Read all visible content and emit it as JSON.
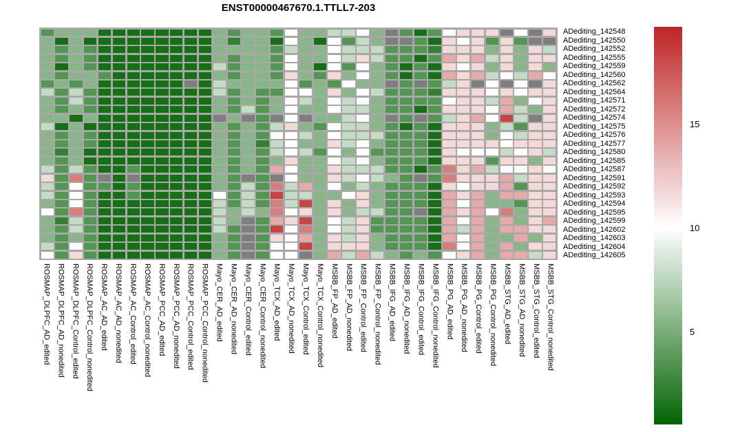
{
  "title": "ENST00000467670.1.TTLL7-203",
  "chart_data": {
    "type": "heatmap",
    "title": "ENST00000467670.1.TTLL7-203",
    "rows": [
      "ADediting_142548",
      "ADediting_142550",
      "ADediting_142552",
      "ADediting_142555",
      "ADediting_142559",
      "ADediting_142560",
      "ADediting_142562",
      "ADediting_142564",
      "ADediting_142571",
      "ADediting_142572",
      "ADediting_142574",
      "ADediting_142575",
      "ADediting_142576",
      "ADediting_142577",
      "ADediting_142580",
      "ADediting_142585",
      "ADediting_142587",
      "ADediting_142591",
      "ADediting_142592",
      "ADediting_142593",
      "ADediting_142594",
      "ADediting_142595",
      "ADediting_142599",
      "ADediting_142602",
      "ADediting_142603",
      "ADediting_142604",
      "ADediting_142605"
    ],
    "columns": [
      "ROSMAP_DLPFC_AD_edited",
      "ROSMAP_DLPFC_AD_nonedited",
      "ROSMAP_DLPFC_Control_edited",
      "ROSMAP_DLPFC_Control_nonedited",
      "ROSMAP_AC_AD_edited",
      "ROSMAP_AC_AD_nonedited",
      "ROSMAP_AC_Control_edited",
      "ROSMAP_AC_Control_nonedited",
      "ROSMAP_PCC_AD_edited",
      "ROSMAP_PCC_AD_nonedited",
      "ROSMAP_PCC_Control_edited",
      "ROSMAP_PCC_Control_nonedited",
      "Mayo_CER_AD_edited",
      "Mayo_CER_AD_nonedited",
      "Mayo_CER_Control_edited",
      "Mayo_CER_Control_nonedited",
      "Mayo_TCX_AD_edited",
      "Mayo_TCX_AD_nonedited",
      "Mayo_TCX_Control_edited",
      "Mayo_TCX_Control_nonedited",
      "MSBB_FP_AD_edited",
      "MSBB_FP_AD_nonedited",
      "MSBB_FP_Control_edited",
      "MSBB_FP_Control_nonedited",
      "MSBB_IFG_AD_edited",
      "MSBB_IFG_AD_nonedited",
      "MSBB_IFG_Control_edited",
      "MSBB_IFG_Control_nonedited",
      "MSBB_PG_AD_edited",
      "MSBB_PG_AD_nonedited",
      "MSBB_PG_Control_edited",
      "MSBB_PG_Control_nonedited",
      "MSBB_STG_AD_edited",
      "MSBB_STG_AD_nonedited",
      "MSBB_STG_Control_edited",
      "MSBB_STG_Control_nonedited"
    ],
    "values": [
      [
        3.5,
        5.5,
        5.5,
        5.5,
        1.2,
        1.2,
        1.2,
        1.2,
        1.2,
        1.2,
        1.2,
        1.2,
        5.5,
        3.5,
        5.5,
        5.5,
        3.5,
        9.9,
        5.5,
        5.5,
        7.8,
        7.8,
        9.9,
        5.5,
        null,
        3.5,
        1.2,
        3.5,
        9.9,
        11.7,
        11.7,
        11.7,
        null,
        9.9,
        null,
        11.7
      ],
      [
        5.5,
        1.2,
        5.5,
        1.2,
        1.2,
        1.2,
        1.2,
        1.2,
        1.2,
        1.2,
        1.2,
        1.2,
        5.5,
        2.3,
        5.5,
        5.5,
        1.2,
        9.9,
        5.5,
        1.2,
        9.9,
        3.5,
        7.8,
        5.5,
        null,
        null,
        3.5,
        1.2,
        11.7,
        9.9,
        11.7,
        3.5,
        11.7,
        3.5,
        null,
        null
      ],
      [
        5.5,
        3.5,
        5.5,
        3.5,
        1.2,
        1.2,
        1.2,
        1.2,
        1.2,
        1.2,
        1.2,
        1.2,
        5.5,
        5.5,
        5.5,
        5.5,
        3.5,
        7.8,
        5.5,
        5.5,
        9.9,
        7.8,
        7.8,
        7.8,
        3.5,
        3.5,
        3.5,
        2.3,
        11.7,
        11.7,
        11.7,
        5.5,
        11.7,
        5.5,
        11.7,
        7.8
      ],
      [
        5.5,
        3.5,
        5.5,
        3.5,
        1.2,
        1.2,
        1.2,
        1.2,
        1.2,
        1.2,
        1.2,
        1.2,
        5.5,
        3.5,
        5.5,
        5.5,
        3.5,
        9.9,
        5.5,
        5.5,
        9.9,
        7.8,
        11.7,
        7.8,
        3.5,
        3.5,
        1.2,
        3.5,
        13.8,
        11.7,
        13.8,
        7.8,
        11.7,
        5.5,
        11.7,
        11.7
      ],
      [
        5.5,
        1.2,
        5.5,
        3.5,
        1.2,
        1.2,
        1.2,
        1.2,
        1.2,
        1.2,
        1.2,
        1.2,
        7.8,
        3.5,
        5.5,
        5.5,
        3.5,
        9.9,
        5.5,
        1.2,
        9.9,
        3.5,
        9.9,
        5.5,
        3.5,
        1.2,
        3.5,
        1.2,
        11.7,
        9.9,
        11.7,
        5.5,
        11.7,
        5.5,
        11.7,
        5.5
      ],
      [
        5.5,
        3.5,
        5.5,
        5.5,
        3.5,
        1.2,
        1.2,
        1.2,
        1.2,
        1.2,
        1.2,
        1.2,
        5.5,
        3.5,
        5.5,
        5.5,
        3.5,
        11.7,
        5.5,
        3.5,
        11.7,
        5.5,
        9.9,
        5.5,
        3.5,
        1.2,
        3.5,
        1.2,
        13.8,
        11.7,
        13.8,
        7.8,
        9.9,
        7.8,
        13.8,
        9.9
      ],
      [
        3.5,
        5.5,
        3.5,
        5.5,
        1.2,
        1.2,
        1.2,
        1.2,
        1.2,
        1.2,
        null,
        1.2,
        7.8,
        5.5,
        5.5,
        5.5,
        5.5,
        9.9,
        3.5,
        5.5,
        3.5,
        9.9,
        5.5,
        5.5,
        null,
        3.5,
        null,
        3.5,
        7.8,
        11.7,
        null,
        9.9,
        null,
        9.9,
        null,
        11.7
      ],
      [
        7.8,
        3.5,
        7.8,
        3.5,
        1.2,
        1.2,
        1.2,
        1.2,
        1.2,
        1.2,
        1.2,
        1.2,
        7.8,
        3.5,
        5.5,
        3.5,
        3.5,
        9.9,
        9.9,
        5.5,
        11.7,
        5.5,
        9.9,
        7.8,
        3.5,
        3.5,
        3.5,
        2.3,
        11.7,
        11.7,
        11.7,
        9.9,
        11.7,
        9.9,
        11.7,
        11.7
      ],
      [
        5.5,
        3.5,
        7.8,
        3.5,
        1.2,
        1.2,
        1.2,
        1.2,
        1.2,
        1.2,
        1.2,
        1.2,
        5.5,
        3.5,
        5.5,
        3.5,
        5.5,
        9.9,
        7.8,
        5.5,
        9.9,
        7.8,
        9.9,
        5.5,
        3.5,
        3.5,
        3.5,
        3.5,
        9.9,
        11.7,
        11.7,
        7.8,
        13.8,
        5.5,
        9.9,
        11.7
      ],
      [
        5.5,
        3.5,
        5.5,
        3.5,
        1.2,
        1.2,
        1.2,
        1.2,
        1.2,
        1.2,
        1.2,
        1.2,
        5.5,
        3.5,
        7.8,
        3.5,
        5.5,
        9.9,
        5.5,
        5.5,
        9.9,
        7.8,
        7.8,
        5.5,
        3.5,
        3.5,
        1.2,
        3.5,
        11.7,
        11.7,
        11.7,
        9.9,
        13.8,
        7.8,
        5.5,
        11.7
      ],
      [
        5.5,
        5.5,
        1.2,
        5.5,
        1.2,
        1.2,
        1.2,
        1.2,
        1.2,
        1.2,
        1.2,
        1.2,
        null,
        5.5,
        null,
        3.5,
        null,
        9.9,
        null,
        5.5,
        5.5,
        7.8,
        9.9,
        5.5,
        null,
        3.5,
        null,
        3.5,
        7.8,
        11.7,
        13.8,
        9.9,
        18.3,
        7.8,
        null,
        11.7
      ],
      [
        7.8,
        1.2,
        5.5,
        1.2,
        1.2,
        1.2,
        1.2,
        1.2,
        1.2,
        1.2,
        1.2,
        1.2,
        5.5,
        3.5,
        5.5,
        3.5,
        7.8,
        11.7,
        5.5,
        3.5,
        9.9,
        7.8,
        7.8,
        5.5,
        3.5,
        1.2,
        3.5,
        1.2,
        11.7,
        11.7,
        11.7,
        5.5,
        7.8,
        3.5,
        11.7,
        11.7
      ],
      [
        5.5,
        3.5,
        5.5,
        3.5,
        1.2,
        1.2,
        1.2,
        1.2,
        1.2,
        1.2,
        1.2,
        1.2,
        5.5,
        3.5,
        5.5,
        3.5,
        9.9,
        9.9,
        7.8,
        5.5,
        9.9,
        7.8,
        7.8,
        7.8,
        3.5,
        3.5,
        3.5,
        1.2,
        11.7,
        11.7,
        11.7,
        5.5,
        9.9,
        7.8,
        11.7,
        11.7
      ],
      [
        5.5,
        3.5,
        5.5,
        3.5,
        1.2,
        1.2,
        1.2,
        1.2,
        1.2,
        1.2,
        1.2,
        1.2,
        5.5,
        3.5,
        5.5,
        2.3,
        7.8,
        9.9,
        5.5,
        5.5,
        11.7,
        7.8,
        9.9,
        5.5,
        3.5,
        3.5,
        3.5,
        1.2,
        11.7,
        11.7,
        11.7,
        11.7,
        9.9,
        11.7,
        11.7,
        11.7
      ],
      [
        5.5,
        2.3,
        5.5,
        1.2,
        1.2,
        1.2,
        1.2,
        1.2,
        1.2,
        1.2,
        1.2,
        1.2,
        5.5,
        3.5,
        5.5,
        3.5,
        7.8,
        9.9,
        7.8,
        3.5,
        9.9,
        5.5,
        9.9,
        3.5,
        3.5,
        3.5,
        3.5,
        1.2,
        11.7,
        9.9,
        9.9,
        9.9,
        7.8,
        9.9,
        11.7,
        7.8
      ],
      [
        5.5,
        3.5,
        5.5,
        1.2,
        1.2,
        1.2,
        1.2,
        1.2,
        1.2,
        1.2,
        1.2,
        1.2,
        5.5,
        3.5,
        5.5,
        3.5,
        5.5,
        11.7,
        5.5,
        5.5,
        9.9,
        7.8,
        9.9,
        5.5,
        3.5,
        3.5,
        3.5,
        1.2,
        11.7,
        11.7,
        11.7,
        3.5,
        11.7,
        11.7,
        5.5,
        11.7
      ],
      [
        7.8,
        3.5,
        7.8,
        3.5,
        1.2,
        1.2,
        3.5,
        1.2,
        1.2,
        1.2,
        1.2,
        1.2,
        5.5,
        3.5,
        5.5,
        3.5,
        13.8,
        9.9,
        5.5,
        5.5,
        11.7,
        7.8,
        7.8,
        7.8,
        3.5,
        3.5,
        1.2,
        3.5,
        15.8,
        11.7,
        13.8,
        7.8,
        9.9,
        9.9,
        11.7,
        9.9
      ],
      [
        11.7,
        3.5,
        15.8,
        3.5,
        null,
        1.2,
        null,
        1.2,
        1.2,
        1.2,
        1.2,
        1.2,
        5.5,
        3.5,
        null,
        3.5,
        null,
        9.9,
        5.5,
        5.5,
        11.7,
        7.8,
        9.9,
        7.8,
        5.5,
        3.5,
        null,
        3.5,
        15.8,
        11.7,
        11.7,
        11.7,
        13.8,
        7.8,
        11.7,
        11.7
      ],
      [
        7.8,
        3.5,
        9.9,
        3.5,
        3.5,
        1.2,
        3.5,
        1.2,
        1.2,
        1.2,
        1.2,
        1.2,
        5.5,
        3.5,
        7.8,
        3.5,
        15.8,
        7.8,
        13.8,
        5.5,
        9.9,
        5.5,
        7.8,
        5.5,
        3.5,
        3.5,
        3.5,
        1.2,
        11.7,
        9.9,
        11.7,
        11.7,
        13.8,
        3.5,
        11.7,
        11.7
      ],
      [
        7.8,
        3.5,
        9.9,
        3.5,
        1.2,
        1.2,
        3.5,
        1.2,
        1.2,
        1.2,
        1.2,
        1.2,
        9.9,
        3.5,
        7.8,
        3.5,
        18.3,
        7.8,
        7.8,
        5.5,
        5.5,
        9.9,
        11.7,
        5.5,
        3.5,
        3.5,
        3.5,
        1.2,
        13.8,
        11.7,
        13.8,
        5.5,
        13.8,
        13.8,
        11.7,
        11.7
      ],
      [
        5.5,
        3.5,
        9.9,
        3.5,
        1.2,
        1.2,
        1.2,
        1.2,
        1.2,
        1.2,
        1.2,
        1.2,
        7.8,
        3.5,
        7.8,
        3.5,
        15.8,
        7.8,
        18.3,
        5.5,
        11.7,
        5.5,
        11.7,
        5.5,
        3.5,
        3.5,
        3.5,
        1.2,
        13.8,
        9.9,
        13.8,
        5.5,
        5.5,
        3.5,
        11.7,
        11.7
      ],
      [
        9.9,
        3.5,
        15.8,
        3.5,
        1.2,
        1.2,
        1.2,
        1.2,
        1.2,
        1.2,
        1.2,
        1.2,
        7.8,
        5.5,
        7.8,
        5.5,
        15.8,
        9.9,
        11.7,
        5.5,
        11.7,
        5.5,
        7.8,
        7.8,
        3.5,
        3.5,
        null,
        1.2,
        13.8,
        11.7,
        13.8,
        9.9,
        15.8,
        5.5,
        11.7,
        11.7
      ],
      [
        5.5,
        2.3,
        7.8,
        3.5,
        1.2,
        1.2,
        1.2,
        1.2,
        1.2,
        1.2,
        1.2,
        1.2,
        7.8,
        5.5,
        null,
        3.5,
        13.8,
        11.7,
        18.3,
        5.5,
        9.9,
        7.8,
        11.7,
        3.5,
        3.5,
        3.5,
        3.5,
        1.2,
        13.8,
        9.9,
        13.8,
        5.5,
        13.8,
        5.5,
        11.7,
        13.8
      ],
      [
        5.5,
        3.5,
        7.8,
        3.5,
        1.2,
        1.2,
        1.2,
        1.2,
        1.2,
        1.2,
        1.2,
        1.2,
        7.8,
        3.5,
        null,
        3.5,
        18.3,
        9.9,
        15.8,
        5.5,
        9.9,
        7.8,
        11.7,
        3.5,
        3.5,
        3.5,
        3.5,
        1.2,
        13.8,
        7.8,
        13.8,
        5.5,
        13.8,
        13.8,
        11.7,
        11.7
      ],
      [
        5.5,
        3.5,
        5.5,
        3.5,
        1.2,
        1.2,
        1.2,
        1.2,
        1.2,
        1.2,
        1.2,
        1.2,
        5.5,
        3.5,
        null,
        3.5,
        11.7,
        9.9,
        13.8,
        5.5,
        11.7,
        7.8,
        11.7,
        5.5,
        3.5,
        3.5,
        3.5,
        1.2,
        13.8,
        9.9,
        13.8,
        5.5,
        5.5,
        13.8,
        5.5,
        11.7
      ],
      [
        7.8,
        3.5,
        9.9,
        3.5,
        1.2,
        1.2,
        1.2,
        1.2,
        1.2,
        1.2,
        1.2,
        1.2,
        5.5,
        3.5,
        null,
        3.5,
        9.9,
        9.9,
        18.3,
        5.5,
        11.7,
        11.7,
        11.7,
        5.5,
        3.5,
        3.5,
        3.5,
        1.2,
        15.8,
        9.9,
        13.8,
        5.5,
        13.8,
        5.5,
        11.7,
        11.7
      ],
      [
        9.9,
        3.5,
        11.7,
        3.5,
        1.2,
        1.2,
        1.2,
        1.2,
        1.2,
        1.2,
        1.2,
        1.2,
        5.5,
        3.5,
        null,
        3.5,
        9.9,
        9.9,
        null,
        5.5,
        13.8,
        7.8,
        13.8,
        7.8,
        5.5,
        3.5,
        5.5,
        3.5,
        9.9,
        11.7,
        13.8,
        5.5,
        13.8,
        13.8,
        7.8,
        11.7
      ]
    ],
    "colorbar": {
      "ticks": [
        15,
        10,
        5
      ],
      "min": 0.5,
      "max": 19.7,
      "mid": 10,
      "low_color": "#046404",
      "mid_color": "#FFFFFF",
      "high_color": "#BE2525",
      "na_color": "#7E7E7E",
      "grid_color": "#A8A8A8",
      "position": "right"
    },
    "xlabel": "",
    "ylabel": "",
    "grid": true,
    "legend_position": "right"
  }
}
